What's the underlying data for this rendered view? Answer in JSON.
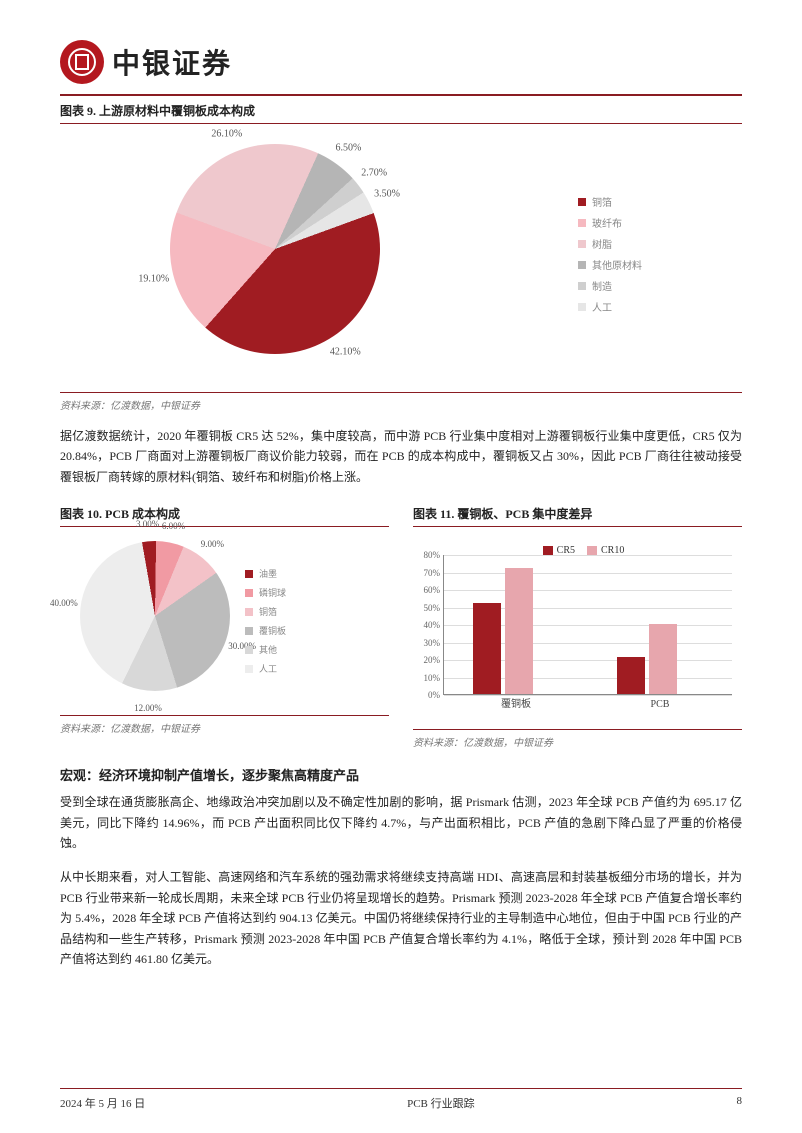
{
  "header": {
    "bank_name": "中银证券"
  },
  "chart9": {
    "title": "图表 9. 上游原材料中覆铜板成本构成",
    "type": "pie",
    "slices": [
      {
        "label": "铜箔",
        "value": 42.1,
        "color": "#a01c22"
      },
      {
        "label": "玻纤布",
        "value": 19.1,
        "color": "#f6b9c0"
      },
      {
        "label": "树脂",
        "value": 26.1,
        "color": "#efc8cd"
      },
      {
        "label": "其他原材料",
        "value": 6.5,
        "color": "#b5b5b5"
      },
      {
        "label": "制造",
        "value": 2.7,
        "color": "#cfcfcf"
      },
      {
        "label": "人工",
        "value": 3.5,
        "color": "#e6e6e6"
      }
    ],
    "label_fontsize": 10,
    "label_color": "#555555",
    "background": "#ffffff",
    "source": "资料来源：亿渡数据，中银证券"
  },
  "paragraph1": "据亿渡数据统计，2020 年覆铜板 CR5 达 52%，集中度较高，而中游 PCB 行业集中度相对上游覆铜板行业集中度更低，CR5 仅为 20.84%，PCB 厂商面对上游覆铜板厂商议价能力较弱，而在 PCB 的成本构成中，覆铜板又占 30%，因此 PCB 厂商往往被动接受覆银板厂商转嫁的原材料(铜箔、玻纤布和树脂)价格上涨。",
  "chart10": {
    "title": "图表 10. PCB 成本构成",
    "type": "pie",
    "slices": [
      {
        "label": "油墨",
        "value": 3.0,
        "color": "#a01c22"
      },
      {
        "label": "磷铜球",
        "value": 6.0,
        "color": "#f19aa3"
      },
      {
        "label": "铜箔",
        "value": 9.0,
        "color": "#f3c2c8"
      },
      {
        "label": "覆铜板",
        "value": 30.0,
        "color": "#bcbcbc"
      },
      {
        "label": "其他",
        "value": 12.0,
        "color": "#d8d8d8"
      },
      {
        "label": "人工",
        "value": 40.0,
        "color": "#ededed"
      }
    ],
    "label_fontsize": 9,
    "label_color": "#555555",
    "source": "资料来源：亿渡数据，中银证券"
  },
  "chart11": {
    "title": "图表 11. 覆铜板、PCB 集中度差异",
    "type": "bar",
    "categories": [
      "覆铜板",
      "PCB"
    ],
    "series": [
      {
        "name": "CR5",
        "color": "#a01c22",
        "values": [
          52,
          21
        ]
      },
      {
        "name": "CR10",
        "color": "#e7a6ad",
        "values": [
          72,
          40
        ]
      }
    ],
    "ylim": [
      0,
      80
    ],
    "ytick_step": 10,
    "grid_color": "#dddddd",
    "axis_color": "#888888",
    "source": "资料来源：亿渡数据，中银证券"
  },
  "macro": {
    "heading": "宏观：经济环境抑制产值增长，逐步聚焦高精度产品",
    "p1": "受到全球在通货膨胀高企、地缘政治冲突加剧以及不确定性加剧的影响，据 Prismark 估测，2023 年全球 PCB 产值约为 695.17 亿美元，同比下降约 14.96%，而 PCB 产出面积同比仅下降约 4.7%，与产出面积相比，PCB 产值的急剧下降凸显了严重的价格侵蚀。",
    "p2": "从中长期来看，对人工智能、高速网络和汽车系统的强劲需求将继续支持高端 HDI、高速高层和封装基板细分市场的增长，并为 PCB 行业带来新一轮成长周期，未来全球 PCB 行业仍将呈现增长的趋势。Prismark 预测 2023-2028 年全球 PCB 产值复合增长率约为 5.4%，2028 年全球 PCB 产值将达到约 904.13 亿美元。中国仍将继续保持行业的主导制造中心地位，但由于中国 PCB 行业的产品结构和一些生产转移，Prismark 预测 2023-2028 年中国 PCB 产值复合增长率约为 4.1%，略低于全球，预计到 2028 年中国 PCB 产值将达到约 461.80 亿美元。"
  },
  "footer": {
    "date": "2024 年 5 月 16 日",
    "doc": "PCB 行业跟踪",
    "page": "8"
  }
}
